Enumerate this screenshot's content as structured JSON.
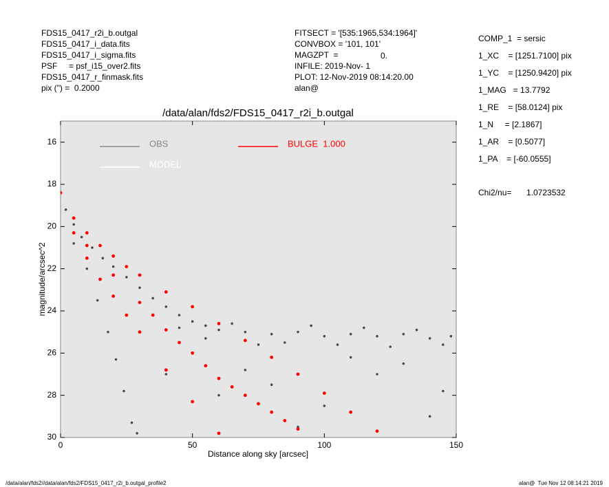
{
  "header": {
    "left": [
      "FDS15_0417_r2i_b.outgal",
      "FDS15_0417_i_data.fits",
      "FDS15_0417_i_sigma.fits",
      "PSF     = psf_i15_over2.fits",
      "FDS15_0417_r_finmask.fits",
      "pix (\") =  0.2000"
    ],
    "middle": [
      "FITSECT = '[535:1965,534:1964]'",
      "CONVBOX = '101, 101'",
      "MAGZPT  =",
      "INFILE: 2019-Nov- 1",
      "PLOT: 12-Nov-2019 08:14:20.00",
      "alan@"
    ],
    "magzpt_value": "0.",
    "right": [
      "COMP_1  = sersic",
      "1_XC    = [1251.7100] pix",
      "1_YC    = [1250.9420] pix",
      "1_MAG   = 13.7792",
      "1_RE    = [58.0124] pix",
      "1_N     = [2.1867]",
      "1_AR    = [0.5077]",
      "1_PA    = [-60.0555]"
    ],
    "chi2_label": "Chi2/nu=",
    "chi2_value": "1.0723532"
  },
  "footer": {
    "left": "/data/alan/fds2//data/alan/fds2/FDS15_0417_r2i_b.outgal_profile2",
    "right": "alan@  Tue Nov 12 08:14:21 2019"
  },
  "chart_data": {
    "type": "scatter",
    "title": "/data/alan/fds2/FDS15_0417_r2i_b.outgal",
    "xlabel": "Distance along sky [arcsec]",
    "ylabel": "magnitude/arcsec^2",
    "xlim": [
      0,
      150
    ],
    "xticks": [
      0,
      50,
      100,
      150
    ],
    "ylim": [
      30,
      15
    ],
    "yticks": [
      16,
      18,
      20,
      22,
      24,
      26,
      28,
      30
    ],
    "series": [
      {
        "name": "OBS",
        "color": "#4a4a4a",
        "x": [
          2,
          5,
          8,
          12,
          16,
          20,
          25,
          30,
          35,
          40,
          45,
          50,
          55,
          60,
          70,
          80,
          90,
          100,
          110,
          120,
          130,
          140,
          148,
          65,
          85,
          95,
          105,
          115,
          125,
          135,
          145,
          75,
          55,
          45,
          5,
          10,
          14,
          18,
          21,
          24,
          27,
          29,
          40,
          60,
          80,
          100,
          120,
          140,
          130,
          110,
          90,
          70,
          145
        ],
        "y": [
          19.2,
          19.9,
          20.5,
          21.0,
          21.5,
          21.9,
          22.4,
          22.9,
          23.4,
          23.8,
          24.2,
          24.5,
          24.7,
          24.9,
          25.0,
          25.1,
          25.0,
          25.2,
          25.1,
          25.2,
          25.1,
          25.3,
          25.2,
          24.6,
          25.5,
          24.7,
          25.6,
          24.8,
          25.7,
          24.9,
          25.6,
          25.6,
          25.3,
          24.8,
          20.8,
          22.0,
          23.5,
          25.0,
          26.3,
          27.8,
          29.3,
          29.8,
          27,
          28,
          27.5,
          28.5,
          27,
          29,
          26.5,
          26.2,
          29.5,
          26.8,
          27.8
        ]
      },
      {
        "name": "MODEL",
        "color": "#ffffff",
        "x": [],
        "y": []
      },
      {
        "name": "BULGE  1.000",
        "color": "#ff0000",
        "x": [
          0,
          5,
          10,
          15,
          20,
          25,
          30,
          40,
          50,
          60,
          70,
          80,
          90,
          100,
          110,
          120,
          5,
          10,
          15,
          20,
          25,
          30,
          40,
          50,
          60,
          10,
          20,
          30,
          40,
          50,
          60,
          70,
          80,
          90,
          35,
          45,
          55,
          65,
          75,
          85
        ],
        "y": [
          18.4,
          19.6,
          20.3,
          20.9,
          21.4,
          21.9,
          22.3,
          23.1,
          23.8,
          24.6,
          25.4,
          26.2,
          27.0,
          27.9,
          28.8,
          29.7,
          20.3,
          21.5,
          22.5,
          23.3,
          24.2,
          25.0,
          26.8,
          28.3,
          29.8,
          20.9,
          22.3,
          23.6,
          24.9,
          26.0,
          27.2,
          28.0,
          28.8,
          29.6,
          24.2,
          25.5,
          26.6,
          27.6,
          28.4,
          29.2
        ]
      }
    ]
  }
}
